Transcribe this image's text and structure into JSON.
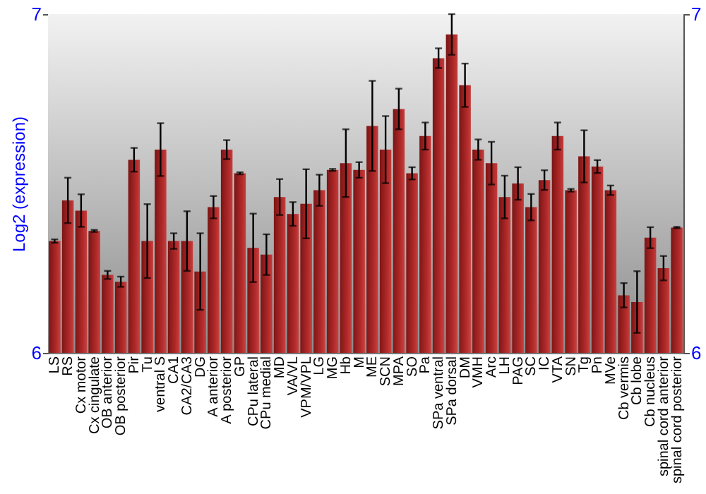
{
  "chart_data": {
    "type": "bar",
    "ylabel": "Log2 (expression)",
    "categories": [
      "LS",
      "RS",
      "Cx motor",
      "Cx cingulate",
      "OB anterior",
      "OB posterior",
      "Pir",
      "Tu",
      "ventral S",
      "CA1",
      "CA2/CA3",
      "DG",
      "A anterior",
      "A posterior",
      "GP",
      "CPu lateral",
      "CPu medial",
      "MD",
      "VA/VL",
      "VPM/VPL",
      "LG",
      "MG",
      "Hb",
      "M",
      "ME",
      "SCN",
      "MPA",
      "SO",
      "Pa",
      "SPa ventral",
      "SPa dorsal",
      "DM",
      "VMH",
      "Arc",
      "LH",
      "PAG",
      "SC",
      "IC",
      "VTA",
      "SN",
      "Tg",
      "Pn",
      "MVe",
      "Cb vermis",
      "Cb lobe",
      "Cb nucleus",
      "spinal cord anterior",
      "spinal cord posterior"
    ],
    "values": [
      6.33,
      6.45,
      6.42,
      6.36,
      6.23,
      6.21,
      6.57,
      6.33,
      6.6,
      6.33,
      6.33,
      6.24,
      6.43,
      6.6,
      6.53,
      6.31,
      6.29,
      6.46,
      6.41,
      6.44,
      6.48,
      6.54,
      6.56,
      6.54,
      6.67,
      6.6,
      6.72,
      6.53,
      6.64,
      6.87,
      6.94,
      6.79,
      6.6,
      6.56,
      6.46,
      6.5,
      6.43,
      6.51,
      6.64,
      6.48,
      6.58,
      6.55,
      6.48,
      6.17,
      6.15,
      6.34,
      6.25,
      6.37
    ],
    "errors": [
      0.005,
      0.067,
      0.048,
      0.003,
      0.012,
      0.015,
      0.035,
      0.109,
      0.078,
      0.023,
      0.088,
      0.113,
      0.033,
      0.028,
      0.003,
      0.101,
      0.06,
      0.053,
      0.035,
      0.102,
      0.046,
      0.003,
      0.1,
      0.023,
      0.133,
      0.099,
      0.06,
      0.018,
      0.04,
      0.029,
      0.06,
      0.064,
      0.03,
      0.063,
      0.063,
      0.048,
      0.039,
      0.029,
      0.04,
      0.004,
      0.077,
      0.019,
      0.014,
      0.036,
      0.091,
      0.031,
      0.036,
      0.002
    ],
    "color": "#b22a2a",
    "ylim": [
      6,
      7
    ],
    "yticks": [
      6,
      7
    ],
    "y2lim": [
      6,
      7
    ],
    "y2ticks": [
      6,
      7
    ],
    "grid": false
  }
}
